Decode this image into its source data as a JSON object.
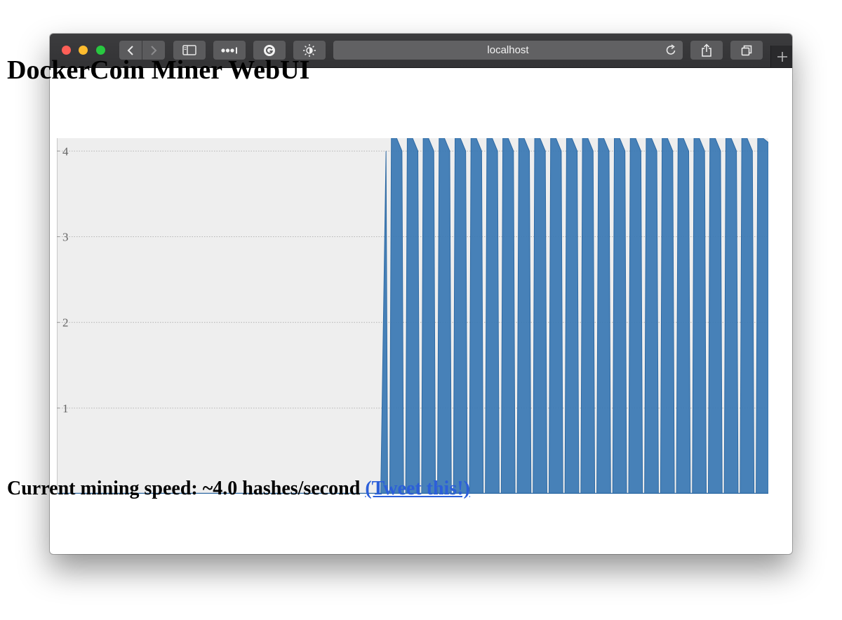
{
  "browser": {
    "address": "localhost",
    "icons": {
      "back": "chevron-left-icon",
      "forward": "chevron-right-icon",
      "sidebar": "sidebar-icon",
      "extensions": "more-dots-icon",
      "grammarly": "grammarly-icon",
      "brightness": "brightness-icon",
      "reload": "reload-icon",
      "share": "share-icon",
      "tabs": "tabs-overview-icon",
      "new_tab": "plus-icon"
    }
  },
  "page": {
    "title": "DockerCoin Miner WebUI",
    "speed_text": "Current mining speed: ~4.0 hashes/second",
    "tweet_link": "(Tweet this!)"
  },
  "colors": {
    "series": "#3a79b4",
    "plot_bg": "#eeeeee",
    "link": "#2c5fd9"
  },
  "chart_data": {
    "type": "area",
    "ylim": [
      0,
      4.15
    ],
    "yticks": [
      "1",
      "2",
      "3",
      "4"
    ],
    "grid": "horizontal-dotted",
    "series": [
      {
        "values": [
          0,
          0,
          0,
          0,
          0,
          0,
          0,
          0,
          0,
          0,
          0,
          0,
          0,
          0,
          0,
          0,
          0,
          0,
          0,
          0,
          0,
          0,
          0,
          0,
          0,
          0,
          0,
          0,
          0,
          0,
          0,
          0,
          0,
          0,
          0,
          0,
          0,
          0,
          0,
          0,
          0,
          0,
          0,
          0,
          0,
          0,
          0,
          0,
          0,
          0,
          0,
          0,
          0,
          0,
          0,
          0,
          0,
          0,
          0,
          0,
          0,
          0,
          4,
          4.15,
          4.15,
          4,
          4.15,
          4.15,
          4,
          4.15,
          4.15,
          4,
          4.15,
          4.15,
          4,
          4.15,
          4.15,
          4,
          4.15,
          4.15,
          4,
          4.15,
          4.15,
          4,
          4.15,
          4.15,
          4,
          4.15,
          4.15,
          4,
          4.15,
          4.15,
          4,
          4.15,
          4.15,
          4,
          4.15,
          4.15,
          4,
          4.15,
          4.15,
          4,
          4.15,
          4.15,
          4,
          4.15,
          4.15,
          4,
          4.15,
          4.15,
          4,
          4.15,
          4.15,
          4,
          4.15,
          4.15,
          4,
          4.15,
          4.15,
          4,
          4.15,
          4.15,
          4,
          4.15,
          4.15,
          4,
          4.15,
          4.15,
          4,
          4.15,
          4.15,
          4,
          4.15,
          4.15,
          4.1
        ]
      }
    ]
  }
}
